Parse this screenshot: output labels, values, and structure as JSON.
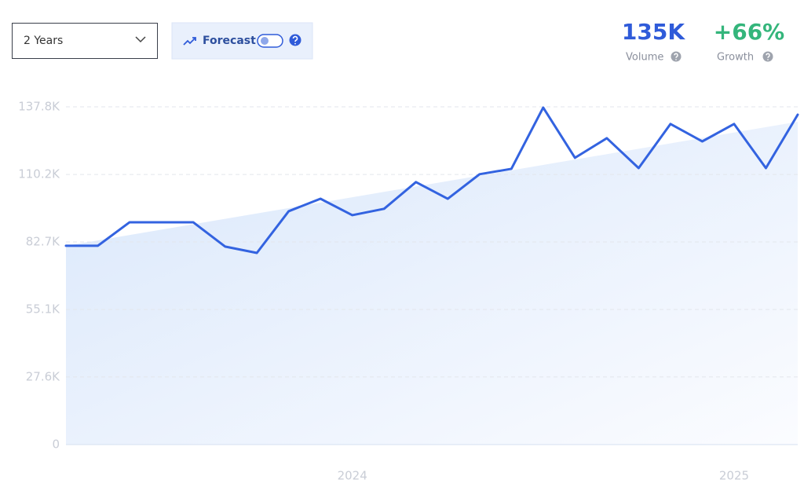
{
  "controls": {
    "range": "2 Years",
    "forecast": "Forecast"
  },
  "stats": [
    {
      "value": "135K",
      "label": "Volume"
    },
    {
      "value": "+66%",
      "label": "Growth"
    }
  ],
  "chart_data": {
    "type": "line",
    "categories": [
      null,
      null,
      null,
      null,
      null,
      null,
      null,
      null,
      null,
      "2024",
      null,
      null,
      null,
      null,
      null,
      null,
      null,
      null,
      null,
      null,
      null,
      "2025",
      null,
      null
    ],
    "values": [
      81100,
      81100,
      90700,
      90700,
      90700,
      80800,
      78200,
      95200,
      100300,
      93600,
      96200,
      107100,
      100300,
      110300,
      112500,
      137500,
      117000,
      125000,
      112800,
      130800,
      123700,
      130800,
      112800,
      134600
    ],
    "trend": [
      81100,
      131700
    ],
    "color": "#3363e0",
    "ylim": [
      0,
      137800
    ],
    "yticks": [
      0,
      {
        "value": 27600,
        "label": "27.6K"
      },
      {
        "value": 55100,
        "label": "55.1K"
      },
      {
        "value": 82700,
        "label": "82.7K"
      },
      {
        "value": 110200,
        "label": "110.2K"
      },
      {
        "value": 137800,
        "label": "137.8K"
      }
    ],
    "grid": true
  }
}
